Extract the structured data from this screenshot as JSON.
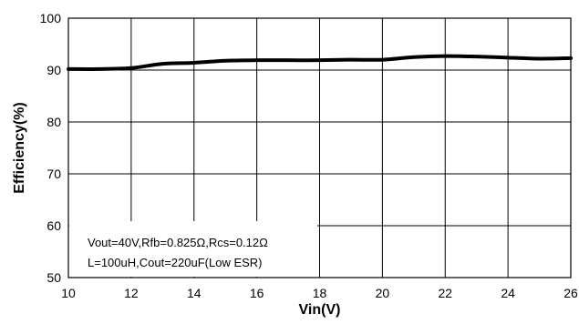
{
  "chart_data": {
    "type": "line",
    "xlabel": "Vin(V)",
    "ylabel": "Efficiency(%)",
    "xlim": [
      10,
      26
    ],
    "ylim": [
      50,
      100
    ],
    "xticks": [
      10,
      12,
      14,
      16,
      18,
      20,
      22,
      24,
      26
    ],
    "yticks": [
      50,
      60,
      70,
      80,
      90,
      100
    ],
    "grid": true,
    "legend": "none",
    "line_color": "#000000",
    "series": [
      {
        "x": [
          10,
          11,
          12,
          13,
          14,
          15,
          16,
          17,
          18,
          19,
          20,
          21,
          22,
          23,
          24,
          25,
          26
        ],
        "y": [
          90.2,
          90.2,
          90.4,
          91.2,
          91.4,
          91.8,
          91.9,
          91.9,
          91.9,
          92.0,
          92.0,
          92.5,
          92.7,
          92.6,
          92.4,
          92.2,
          92.3
        ]
      }
    ],
    "annotation": {
      "lines": [
        "Vout=40V,Rfb=0.825Ω,Rcs=0.12Ω",
        "L=100uH,Cout=220uF(Low ESR)"
      ]
    }
  }
}
